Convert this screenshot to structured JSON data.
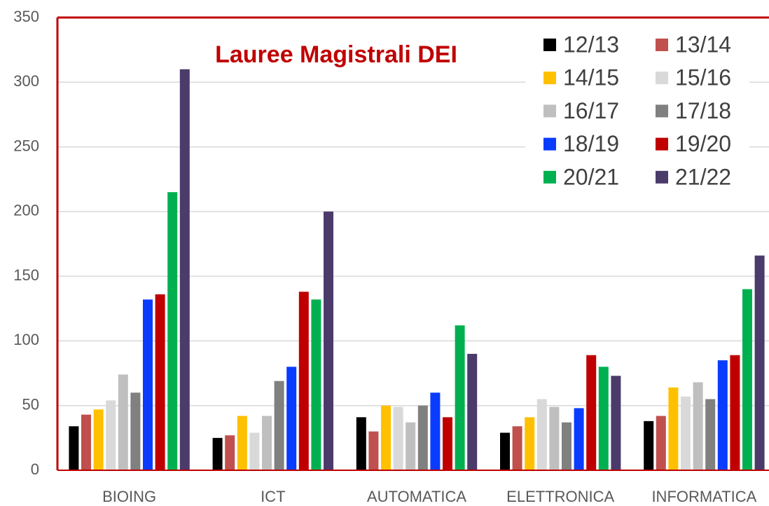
{
  "chart_data": {
    "type": "bar",
    "title": "Lauree Magistrali DEI",
    "categories": [
      "BIOING",
      "ICT",
      "AUTOMATICA",
      "ELETTRONICA",
      "INFORMATICA"
    ],
    "series": [
      {
        "name": "12/13",
        "color": "#000000",
        "values": [
          34,
          25,
          41,
          29,
          38
        ]
      },
      {
        "name": "13/14",
        "color": "#c0504d",
        "values": [
          43,
          27,
          30,
          34,
          42
        ]
      },
      {
        "name": "14/15",
        "color": "#ffc000",
        "values": [
          47,
          42,
          50,
          41,
          64
        ]
      },
      {
        "name": "15/16",
        "color": "#d9d9d9",
        "values": [
          54,
          29,
          49,
          55,
          57
        ]
      },
      {
        "name": "16/17",
        "color": "#bfbfbf",
        "values": [
          74,
          42,
          37,
          49,
          68
        ]
      },
      {
        "name": "17/18",
        "color": "#808080",
        "values": [
          60,
          69,
          50,
          37,
          55
        ]
      },
      {
        "name": "18/19",
        "color": "#0a3cff",
        "values": [
          132,
          80,
          60,
          48,
          85
        ]
      },
      {
        "name": "19/20",
        "color": "#c00000",
        "values": [
          136,
          138,
          41,
          89,
          89
        ]
      },
      {
        "name": "20/21",
        "color": "#00b050",
        "values": [
          215,
          132,
          112,
          80,
          140
        ]
      },
      {
        "name": "21/22",
        "color": "#4b3b6b",
        "values": [
          310,
          200,
          90,
          73,
          166
        ]
      }
    ],
    "ylim": [
      0,
      350
    ],
    "yticks": [
      0,
      50,
      100,
      150,
      200,
      250,
      300,
      350
    ],
    "grid": true
  }
}
